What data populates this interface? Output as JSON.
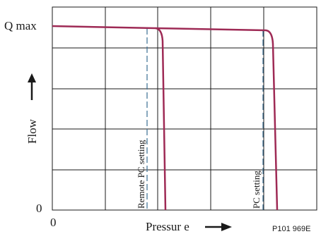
{
  "labels": {
    "y_top": "Q max",
    "y_zero": "0",
    "x_zero": "0",
    "y_axis_title": "Flow",
    "x_axis_title": "Pressur e",
    "remote_setting": "Remote PC setting",
    "pc_setting": "PC setting",
    "code": "P101 969E"
  },
  "colors": {
    "grid": "#1a1a1a",
    "curve": "#9e2a55",
    "setting_line": "#3a6f92",
    "text": "#1a1a1a"
  },
  "elements": {
    "curves": [
      "remote-pc-curve",
      "pc-curve"
    ],
    "setting_lines": [
      "remote-pc-setting-line",
      "pc-setting-line"
    ],
    "arrows": [
      "flow-arrow-icon",
      "pressure-arrow-icon"
    ]
  }
}
